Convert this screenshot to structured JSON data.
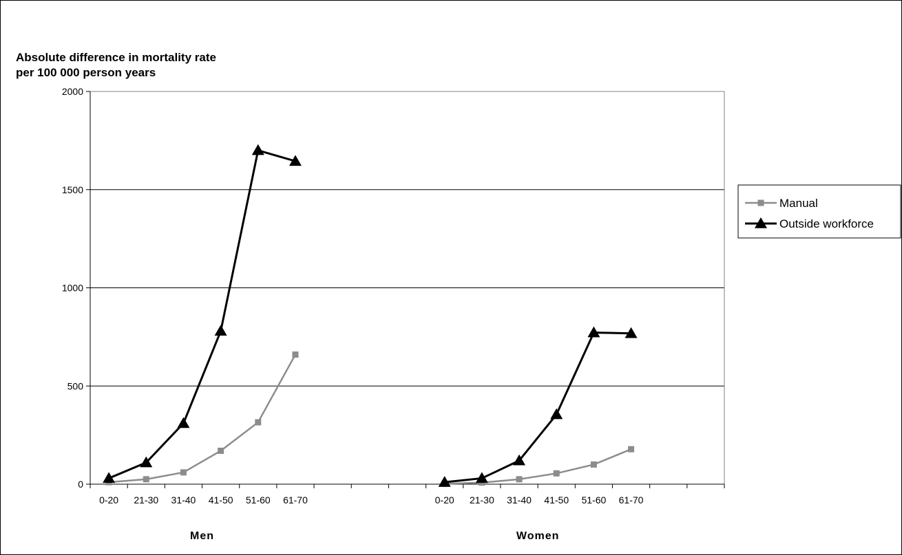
{
  "chart_data": {
    "type": "line",
    "title": "",
    "ylabel_lines": [
      "Absolute difference in mortality rate",
      "per 100 000 person years"
    ],
    "ylim": [
      0,
      2000
    ],
    "yticks": [
      0,
      500,
      1000,
      1500,
      2000
    ],
    "grid": "horizontal",
    "legend_placement": "right",
    "groups": [
      {
        "name": "Men",
        "categories": [
          "0-20",
          "21-30",
          "31-40",
          "41-50",
          "51-60",
          "61-70"
        ],
        "series": [
          {
            "name": "Manual",
            "color": "#8c8c8c",
            "marker": "square",
            "values": [
              10,
              25,
              60,
              170,
              315,
              660
            ]
          },
          {
            "name": "Outside workforce",
            "color": "#000000",
            "marker": "triangle",
            "values": [
              30,
              110,
              310,
              780,
              1700,
              1645
            ]
          }
        ]
      },
      {
        "name": "Women",
        "categories": [
          "0-20",
          "21-30",
          "31-40",
          "41-50",
          "51-60",
          "61-70"
        ],
        "series": [
          {
            "name": "Manual",
            "color": "#8c8c8c",
            "marker": "square",
            "values": [
              2,
              8,
              25,
              55,
              100,
              178
            ]
          },
          {
            "name": "Outside workforce",
            "color": "#000000",
            "marker": "triangle",
            "values": [
              10,
              30,
              120,
              355,
              772,
              768
            ]
          }
        ]
      }
    ],
    "legend": [
      {
        "name": "Manual",
        "color": "#8c8c8c",
        "marker": "square"
      },
      {
        "name": "Outside workforce",
        "color": "#000000",
        "marker": "triangle"
      }
    ]
  }
}
